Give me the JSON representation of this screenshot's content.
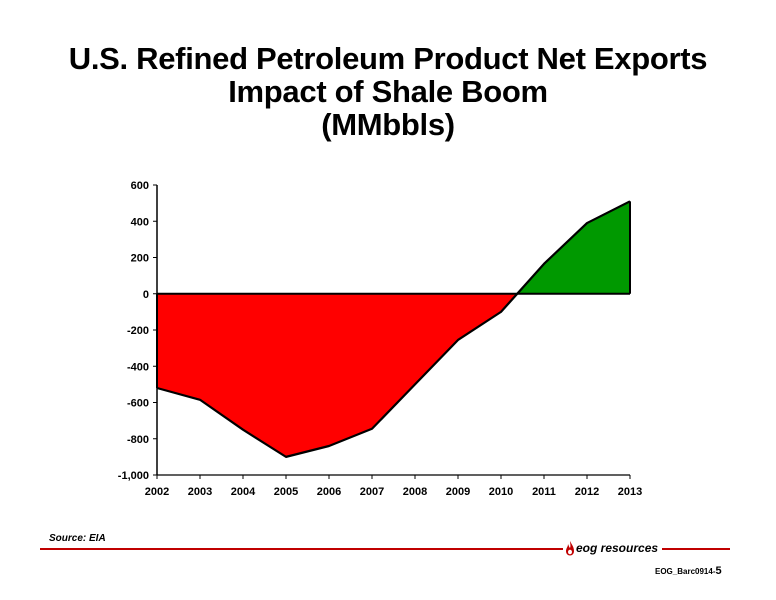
{
  "title": {
    "line1": "U.S. Refined Petroleum Product Net Exports",
    "line2": "Impact of Shale Boom",
    "line3": "(MMbbls)"
  },
  "chart_data": {
    "type": "area",
    "title": "U.S. Refined Petroleum Product Net Exports Impact of Shale Boom (MMbbls)",
    "x": [
      2002,
      2003,
      2004,
      2005,
      2006,
      2007,
      2008,
      2009,
      2010,
      2011,
      2012,
      2013
    ],
    "categories": [
      "2002",
      "2003",
      "2004",
      "2005",
      "2006",
      "2007",
      "2008",
      "2009",
      "2010",
      "2011",
      "2012",
      "2013"
    ],
    "values": [
      -520,
      -585,
      -750,
      -900,
      -840,
      -745,
      -500,
      -255,
      -100,
      165,
      390,
      510
    ],
    "ylim": [
      -1000,
      600
    ],
    "yticks": [
      600,
      400,
      200,
      0,
      -200,
      -400,
      -600,
      -800,
      -1000
    ],
    "ytick_labels": [
      "600",
      "400",
      "200",
      "0",
      "-200",
      "-400",
      "-600",
      "-800",
      "-1,000"
    ],
    "negative_color": "#ff0000",
    "positive_color": "#009900",
    "grid": false
  },
  "footer": {
    "source": "Source: EIA",
    "logo_text": "eog resources",
    "slide_code": "EOG_Barc0914-",
    "slide_number": "5",
    "rule_color": "#c00000"
  }
}
